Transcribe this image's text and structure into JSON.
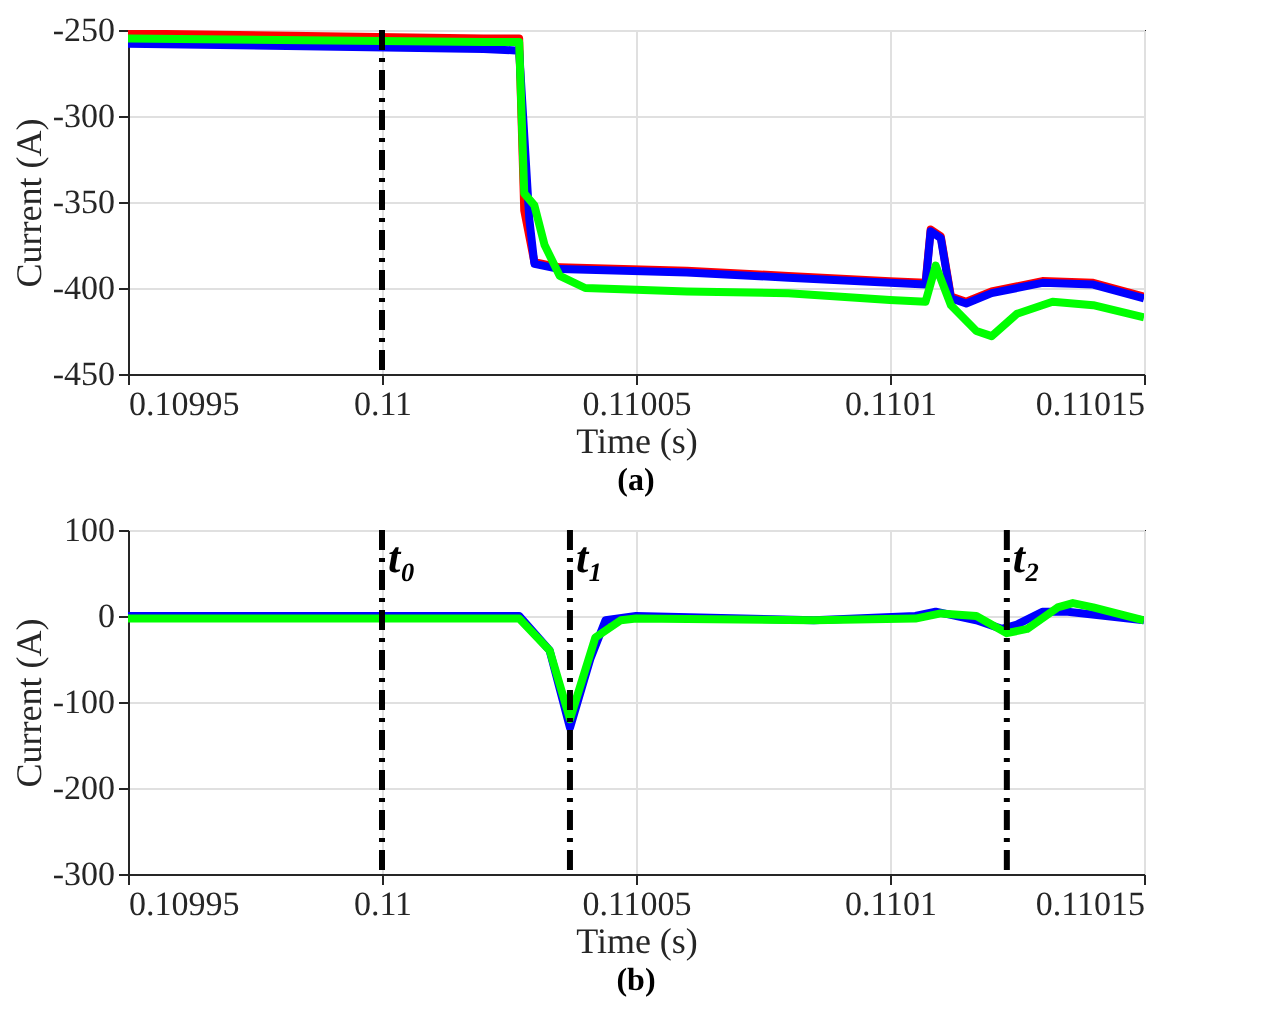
{
  "chart_data": [
    {
      "type": "line",
      "xlabel": "Time (s)",
      "ylabel": "Current (A)",
      "annotations": [
        "(a)"
      ],
      "xlim": [
        0.10995,
        0.11015
      ],
      "xticks": [
        0.10995,
        0.11,
        0.11005,
        0.1101,
        0.11015
      ],
      "ylim": [
        -450,
        -250
      ],
      "yticks": [
        -450,
        -400,
        -350,
        -300,
        -250
      ],
      "grid": true,
      "line_style": "solid",
      "ref_lines": [
        {
          "axis": "x",
          "value": 0.11,
          "label": null,
          "line_style": "dashed",
          "color": "#000000"
        }
      ],
      "series": [
        {
          "color": "#ff0000",
          "x": [
            0.10995,
            0.11002,
            0.110027,
            0.110028,
            0.11003,
            0.110035,
            0.11006,
            0.11008,
            0.1101,
            0.110107,
            0.110108,
            0.11011,
            0.110112,
            0.110115,
            0.11012,
            0.11013,
            0.11014,
            0.11015
          ],
          "values": [
            -252,
            -255,
            -255,
            -355,
            -385,
            -388,
            -390,
            -393,
            -396,
            -397,
            -366,
            -370,
            -405,
            -408,
            -402,
            -396,
            -397,
            -405
          ]
        },
        {
          "color": "#0000ff",
          "x": [
            0.10995,
            0.11002,
            0.110027,
            0.110029,
            0.11003,
            0.110035,
            0.11006,
            0.11008,
            0.1101,
            0.110107,
            0.110108,
            0.11011,
            0.110112,
            0.110115,
            0.11012,
            0.11013,
            0.11014,
            0.11015
          ],
          "values": [
            -258,
            -261,
            -262,
            -360,
            -386,
            -389,
            -391,
            -394,
            -397,
            -398,
            -367,
            -371,
            -406,
            -409,
            -403,
            -397,
            -398,
            -406
          ]
        },
        {
          "color": "#00ff00",
          "x": [
            0.10995,
            0.11002,
            0.110027,
            0.110028,
            0.11003,
            0.110032,
            0.110035,
            0.11004,
            0.11006,
            0.11008,
            0.1101,
            0.110107,
            0.110109,
            0.110112,
            0.110117,
            0.11012,
            0.110125,
            0.110132,
            0.11014,
            0.11015
          ],
          "values": [
            -255,
            -257,
            -257,
            -345,
            -352,
            -375,
            -393,
            -400,
            -402,
            -403,
            -407,
            -408,
            -387,
            -410,
            -425,
            -428,
            -415,
            -408,
            -410,
            -417
          ]
        }
      ]
    },
    {
      "type": "line",
      "xlabel": "Time (s)",
      "ylabel": "Current (A)",
      "annotations": [
        "(b)"
      ],
      "xlim": [
        0.10995,
        0.11015
      ],
      "xticks": [
        0.10995,
        0.11,
        0.11005,
        0.1101,
        0.11015
      ],
      "ylim": [
        -300,
        100
      ],
      "yticks": [
        -300,
        -200,
        -100,
        0,
        100
      ],
      "grid": true,
      "line_style": "solid",
      "ref_lines": [
        {
          "axis": "x",
          "value": 0.11,
          "label": "t₀",
          "line_style": "dashed",
          "color": "#000000"
        },
        {
          "axis": "x",
          "value": 0.110037,
          "label": "t₁",
          "line_style": "dashed",
          "color": "#000000"
        },
        {
          "axis": "x",
          "value": 0.110123,
          "label": "t₂",
          "line_style": "dashed",
          "color": "#000000"
        }
      ],
      "series": [
        {
          "color": "#0000ff",
          "x": [
            0.10995,
            0.110027,
            0.110033,
            0.110037,
            0.110041,
            0.110044,
            0.11005,
            0.110085,
            0.110105,
            0.110109,
            0.110117,
            0.110122,
            0.110125,
            0.11013,
            0.110135,
            0.11015
          ],
          "values": [
            0,
            0,
            -40,
            -130,
            -50,
            -5,
            0,
            -5,
            0,
            5,
            -5,
            -15,
            -10,
            5,
            5,
            -5
          ]
        },
        {
          "color": "#00ff00",
          "x": [
            0.10995,
            0.110027,
            0.110033,
            0.110037,
            0.110042,
            0.110047,
            0.11005,
            0.110085,
            0.110105,
            0.11011,
            0.110117,
            0.110123,
            0.110127,
            0.110133,
            0.110136,
            0.11014,
            0.11015
          ],
          "values": [
            -3,
            -3,
            -40,
            -120,
            -25,
            -5,
            -3,
            -5,
            -3,
            3,
            0,
            -20,
            -15,
            10,
            15,
            10,
            -5
          ]
        }
      ]
    }
  ]
}
